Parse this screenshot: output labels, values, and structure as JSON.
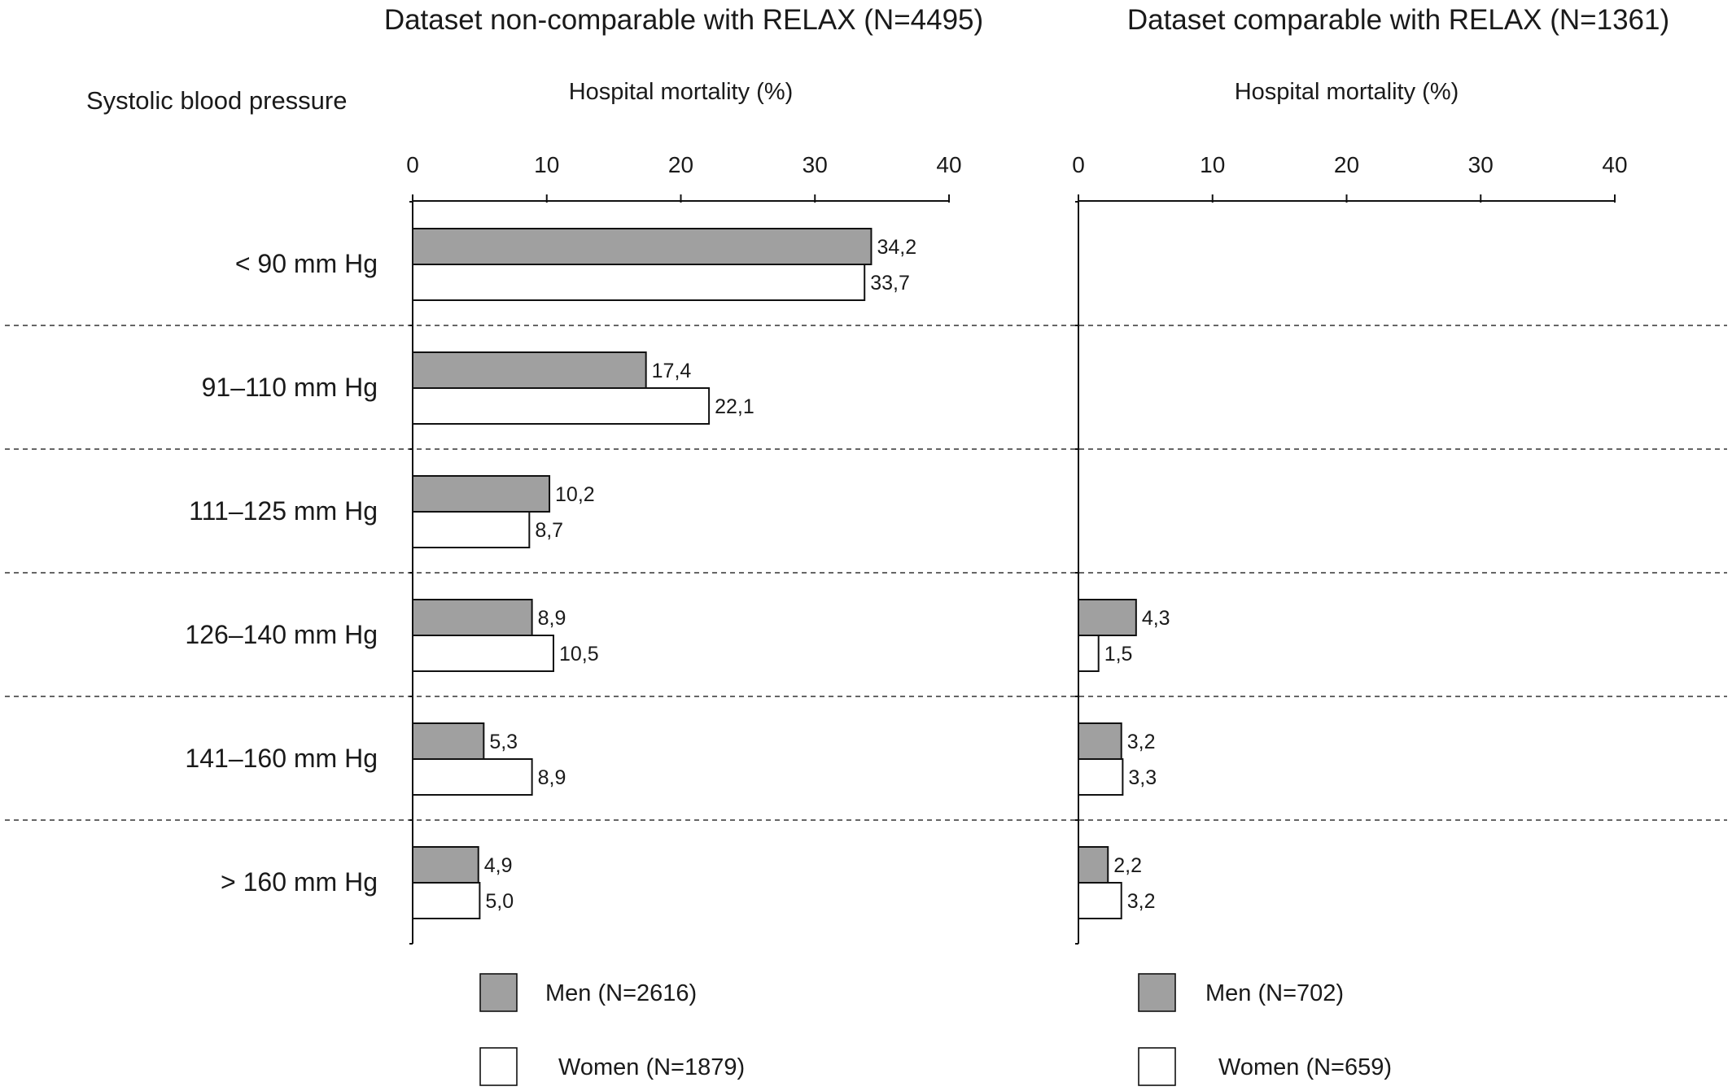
{
  "row_header": "Systolic blood pressure",
  "chart_data": [
    {
      "type": "bar",
      "orientation": "horizontal",
      "title": "Dataset non-comparable with RELAX (N=4495)",
      "xlabel": "Hospital mortality (%)",
      "ylabel": "",
      "xlim": [
        0,
        40
      ],
      "xticks": [
        "0",
        "10",
        "20",
        "30",
        "40"
      ],
      "grid": false,
      "legend_position": "bottom",
      "categories": [
        "< 90 mm Hg",
        "91–110 mm Hg",
        "111–125 mm Hg",
        "126–140 mm Hg",
        "141–160 mm Hg",
        "> 160 mm Hg"
      ],
      "series": [
        {
          "name": "Men (N=2616)",
          "color": "#a0a0a0",
          "values": [
            34.2,
            17.4,
            10.2,
            8.9,
            5.3,
            4.9
          ],
          "labels": [
            "34,2",
            "17,4",
            "10,2",
            "8,9",
            "5,3",
            "4,9"
          ]
        },
        {
          "name": "Women (N=1879)",
          "color": "#ffffff",
          "values": [
            33.7,
            22.1,
            8.7,
            10.5,
            8.9,
            5.0
          ],
          "labels": [
            "33,7",
            "22,1",
            "8,7",
            "10,5",
            "8,9",
            "5,0"
          ]
        }
      ]
    },
    {
      "type": "bar",
      "orientation": "horizontal",
      "title": "Dataset comparable with RELAX (N=1361)",
      "xlabel": "Hospital mortality (%)",
      "ylabel": "",
      "xlim": [
        0,
        40
      ],
      "xticks": [
        "0",
        "10",
        "20",
        "30",
        "40"
      ],
      "grid": false,
      "legend_position": "bottom",
      "categories": [
        "< 90 mm Hg",
        "91–110 mm Hg",
        "111–125 mm Hg",
        "126–140 mm Hg",
        "141–160 mm Hg",
        "> 160 mm Hg"
      ],
      "series": [
        {
          "name": "Men (N=702)",
          "color": "#a0a0a0",
          "values": [
            null,
            null,
            null,
            4.3,
            3.2,
            2.2
          ],
          "labels": [
            "",
            "",
            "",
            "4,3",
            "3,2",
            "2,2"
          ]
        },
        {
          "name": "Women (N=659)",
          "color": "#ffffff",
          "values": [
            null,
            null,
            null,
            1.5,
            3.3,
            3.2
          ],
          "labels": [
            "",
            "",
            "",
            "1,5",
            "3,3",
            "3,2"
          ]
        }
      ]
    }
  ]
}
